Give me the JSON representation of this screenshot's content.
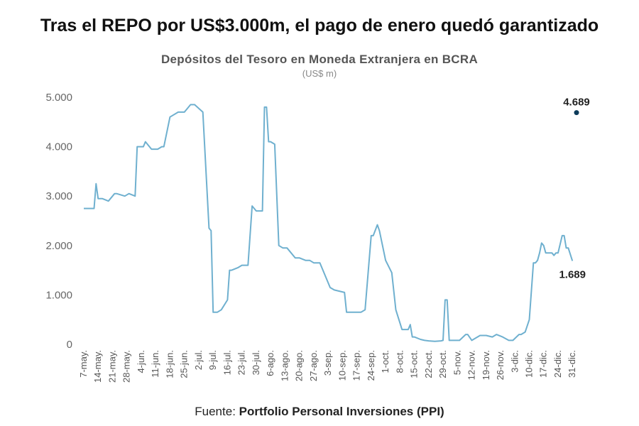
{
  "headline": "Tras el REPO por US$3.000m, el pago de enero quedó garantizado",
  "source": {
    "prefix": "Fuente: ",
    "name": "Portfolio Personal Inversiones (PPI)"
  },
  "colors": {
    "line": "#6fb0cf",
    "point": "#0d3b5a",
    "text": "#222222"
  },
  "chart_data": {
    "type": "line",
    "title": "Depósitos del Tesoro en Moneda Extranjera en BCRA",
    "subtitle": "(US$ m)",
    "xlabel": "",
    "ylabel": "",
    "ylim": [
      0,
      5000
    ],
    "yticks": [
      0,
      1000,
      2000,
      3000,
      4000,
      5000
    ],
    "ytick_labels": [
      "0",
      "1.000",
      "2.000",
      "3.000",
      "4.000",
      "5.000"
    ],
    "xlim": [
      0,
      240
    ],
    "xticks": [
      0,
      7,
      14,
      21,
      28,
      35,
      42,
      49,
      56,
      63,
      70,
      77,
      84,
      91,
      98,
      105,
      112,
      119,
      126,
      133,
      140,
      147,
      154,
      161,
      168,
      175,
      182,
      189,
      196,
      203,
      210,
      217,
      224,
      231,
      238
    ],
    "xtick_labels": [
      "7-may.",
      "14-may.",
      "21-may.",
      "28-may.",
      "4-jun.",
      "11-jun.",
      "18-jun.",
      "25-jun.",
      "2-jul.",
      "9-jul.",
      "16-jul.",
      "23-jul.",
      "30-jul.",
      "6-ago.",
      "13-ago.",
      "20-ago.",
      "27-ago.",
      "3-sep.",
      "10-sep.",
      "17-sep.",
      "24-sep.",
      "1-oct.",
      "8-oct.",
      "15-oct.",
      "22-oct.",
      "29-oct.",
      "5-nov.",
      "12-nov.",
      "19-nov.",
      "26-nov.",
      "3-dic.",
      "10-dic.",
      "17-dic.",
      "24-dic.",
      "31-dic."
    ],
    "grid": false,
    "legend": "none",
    "series": [
      {
        "name": "Depósitos del Tesoro",
        "x": [
          0,
          5,
          6,
          7,
          9,
          12,
          15,
          16,
          20,
          22,
          25,
          26,
          28,
          29,
          30,
          33,
          36,
          38,
          39,
          42,
          46,
          49,
          52,
          54,
          58,
          61,
          62,
          63,
          64,
          65,
          67,
          70,
          71,
          72,
          75,
          77,
          78,
          80,
          82,
          84,
          85,
          87,
          88,
          89,
          90,
          91,
          93,
          95,
          97,
          99,
          100,
          103,
          105,
          108,
          110,
          112,
          115,
          117,
          120,
          122,
          127,
          128,
          129,
          130,
          131,
          133,
          135,
          137,
          140,
          141,
          143,
          144,
          147,
          150,
          152,
          155,
          158,
          159,
          160,
          161,
          164,
          166,
          168,
          171,
          174,
          175,
          176,
          177,
          178,
          179,
          183,
          186,
          187,
          189,
          193,
          196,
          199,
          201,
          204,
          207,
          209,
          212,
          213,
          215,
          217,
          219,
          220,
          221,
          222,
          223,
          224,
          225,
          226,
          228,
          229,
          230,
          231,
          233,
          234,
          235,
          236,
          238
        ],
        "y": [
          2750,
          2750,
          3250,
          2950,
          2950,
          2900,
          3050,
          3050,
          3000,
          3050,
          3000,
          4000,
          4000,
          4000,
          4100,
          3950,
          3950,
          4000,
          4000,
          4600,
          4700,
          4700,
          4850,
          4850,
          4700,
          2350,
          2300,
          650,
          650,
          650,
          700,
          900,
          1500,
          1500,
          1550,
          1600,
          1600,
          1600,
          2800,
          2700,
          2700,
          2700,
          4800,
          4800,
          4100,
          4100,
          4050,
          2000,
          1950,
          1950,
          1900,
          1750,
          1750,
          1700,
          1700,
          1650,
          1650,
          1450,
          1150,
          1100,
          1050,
          650,
          650,
          650,
          650,
          650,
          650,
          700,
          2200,
          2200,
          2420,
          2300,
          1700,
          1450,
          700,
          300,
          300,
          400,
          150,
          150,
          100,
          80,
          70,
          60,
          70,
          80,
          900,
          900,
          80,
          80,
          80,
          200,
          200,
          80,
          180,
          180,
          150,
          200,
          150,
          80,
          80,
          200,
          200,
          250,
          500,
          1650,
          1650,
          1700,
          1850,
          2050,
          2000,
          1850,
          1850,
          1850,
          1800,
          1850,
          1850,
          2200,
          2200,
          1950,
          1950,
          1689
        ]
      }
    ],
    "points": [
      {
        "x": 240,
        "y": 4689,
        "label": "4.689"
      }
    ],
    "annotations": [
      {
        "x": 240,
        "y": 4689,
        "text": "4.689"
      },
      {
        "x": 238,
        "y": 1689,
        "text": "1.689"
      }
    ]
  }
}
